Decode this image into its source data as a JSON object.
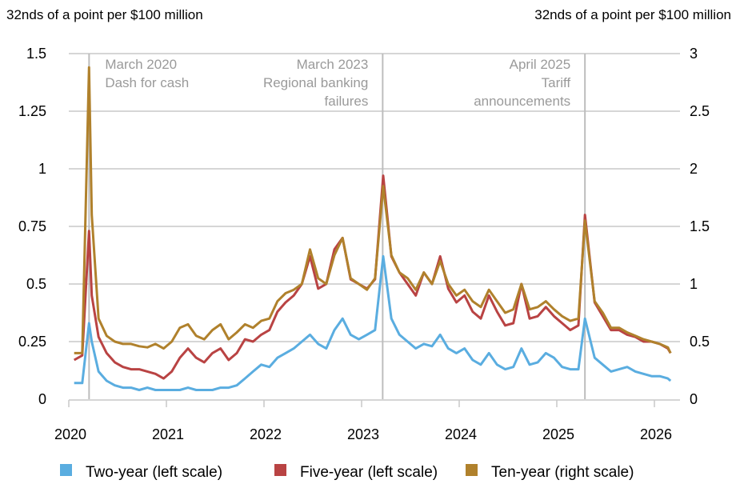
{
  "chart_data": {
    "type": "line",
    "ylabel_left": "32nds of a point per $100 million",
    "ylabel_right": "32nds of a point per $100 million",
    "ylim_left": [
      0,
      1.5
    ],
    "ylim_right": [
      0,
      3
    ],
    "yticks_left": [
      "0",
      "0.25",
      "0.5",
      "0.75",
      "1",
      "1.25",
      "1.5"
    ],
    "yticks_right": [
      "0",
      "0.5",
      "1",
      "1.5",
      "2",
      "2.5",
      "3"
    ],
    "xticks": [
      "2020",
      "2021",
      "2022",
      "2023",
      "2024",
      "2025",
      "2026"
    ],
    "grid": true,
    "legend_position": "bottom",
    "annotations": [
      {
        "date": "2020-03-10",
        "lines": [
          "March 2020",
          "Dash for cash"
        ],
        "align": "left"
      },
      {
        "date": "2023-03-13",
        "lines": [
          "March 2023",
          "Regional banking",
          "failures"
        ],
        "align": "right"
      },
      {
        "date": "2025-04-09",
        "lines": [
          "April 2025",
          "Tariff",
          "announcements"
        ],
        "align": "right"
      }
    ],
    "x": [
      "2020-01-15",
      "2020-02-15",
      "2020-03-10",
      "2020-03-20",
      "2020-04-15",
      "2020-05-15",
      "2020-06-15",
      "2020-07-15",
      "2020-08-15",
      "2020-09-15",
      "2020-10-15",
      "2020-11-15",
      "2020-12-15",
      "2021-01-15",
      "2021-02-15",
      "2021-03-15",
      "2021-04-15",
      "2021-05-15",
      "2021-06-15",
      "2021-07-15",
      "2021-08-15",
      "2021-09-15",
      "2021-10-15",
      "2021-11-15",
      "2021-12-15",
      "2022-01-15",
      "2022-02-15",
      "2022-03-15",
      "2022-04-15",
      "2022-05-15",
      "2022-06-15",
      "2022-07-15",
      "2022-08-15",
      "2022-09-15",
      "2022-10-15",
      "2022-11-15",
      "2022-12-15",
      "2023-01-15",
      "2023-02-15",
      "2023-03-15",
      "2023-04-15",
      "2023-05-15",
      "2023-06-15",
      "2023-07-15",
      "2023-08-15",
      "2023-09-15",
      "2023-10-15",
      "2023-11-15",
      "2023-12-15",
      "2024-01-15",
      "2024-02-15",
      "2024-03-15",
      "2024-04-15",
      "2024-05-15",
      "2024-06-15",
      "2024-07-15",
      "2024-08-15",
      "2024-09-15",
      "2024-10-15",
      "2024-11-15",
      "2024-12-15",
      "2025-01-15",
      "2025-02-15",
      "2025-03-15",
      "2025-04-09",
      "2025-05-15",
      "2025-06-15",
      "2025-07-15",
      "2025-08-15",
      "2025-09-15",
      "2025-10-15",
      "2025-11-15",
      "2025-12-15",
      "2026-01-15",
      "2026-02-15",
      "2026-02-25"
    ],
    "series": [
      {
        "name": "Two-year (left scale)",
        "axis": "left",
        "color": "#5aade0",
        "values": [
          0.07,
          0.07,
          0.33,
          0.25,
          0.12,
          0.08,
          0.06,
          0.05,
          0.05,
          0.04,
          0.05,
          0.04,
          0.04,
          0.04,
          0.04,
          0.05,
          0.04,
          0.04,
          0.04,
          0.05,
          0.05,
          0.06,
          0.09,
          0.12,
          0.15,
          0.14,
          0.18,
          0.2,
          0.22,
          0.25,
          0.28,
          0.24,
          0.22,
          0.3,
          0.35,
          0.28,
          0.26,
          0.28,
          0.3,
          0.62,
          0.35,
          0.28,
          0.25,
          0.22,
          0.24,
          0.23,
          0.28,
          0.22,
          0.2,
          0.22,
          0.17,
          0.15,
          0.2,
          0.15,
          0.13,
          0.14,
          0.22,
          0.15,
          0.16,
          0.2,
          0.18,
          0.14,
          0.13,
          0.13,
          0.35,
          0.18,
          0.15,
          0.12,
          0.13,
          0.14,
          0.12,
          0.11,
          0.1,
          0.1,
          0.09,
          0.08
        ]
      },
      {
        "name": "Five-year (left scale)",
        "axis": "left",
        "color": "#b94343",
        "values": [
          0.17,
          0.19,
          0.73,
          0.45,
          0.27,
          0.2,
          0.16,
          0.14,
          0.13,
          0.13,
          0.12,
          0.11,
          0.09,
          0.12,
          0.18,
          0.22,
          0.18,
          0.16,
          0.2,
          0.22,
          0.17,
          0.2,
          0.26,
          0.25,
          0.28,
          0.3,
          0.38,
          0.42,
          0.45,
          0.5,
          0.62,
          0.48,
          0.5,
          0.65,
          0.7,
          0.52,
          0.5,
          0.48,
          0.52,
          0.97,
          0.62,
          0.55,
          0.5,
          0.45,
          0.55,
          0.5,
          0.62,
          0.48,
          0.42,
          0.45,
          0.38,
          0.35,
          0.45,
          0.38,
          0.32,
          0.33,
          0.5,
          0.35,
          0.36,
          0.4,
          0.36,
          0.33,
          0.3,
          0.32,
          0.8,
          0.42,
          0.36,
          0.3,
          0.3,
          0.28,
          0.27,
          0.25,
          0.25,
          0.24,
          0.22,
          0.2
        ]
      },
      {
        "name": "Ten-year (right scale)",
        "axis": "right",
        "color": "#b0812c",
        "values": [
          0.4,
          0.4,
          2.88,
          1.6,
          0.7,
          0.55,
          0.5,
          0.48,
          0.48,
          0.46,
          0.45,
          0.48,
          0.44,
          0.5,
          0.62,
          0.65,
          0.55,
          0.52,
          0.6,
          0.65,
          0.52,
          0.58,
          0.65,
          0.62,
          0.68,
          0.7,
          0.85,
          0.92,
          0.95,
          1.0,
          1.3,
          1.05,
          1.0,
          1.25,
          1.4,
          1.05,
          1.0,
          0.95,
          1.05,
          1.85,
          1.25,
          1.1,
          1.05,
          0.95,
          1.1,
          1.0,
          1.2,
          1.0,
          0.9,
          0.95,
          0.85,
          0.8,
          0.95,
          0.85,
          0.75,
          0.78,
          1.0,
          0.78,
          0.8,
          0.85,
          0.78,
          0.72,
          0.68,
          0.7,
          1.55,
          0.85,
          0.75,
          0.62,
          0.62,
          0.58,
          0.55,
          0.52,
          0.5,
          0.48,
          0.45,
          0.4
        ]
      }
    ]
  }
}
